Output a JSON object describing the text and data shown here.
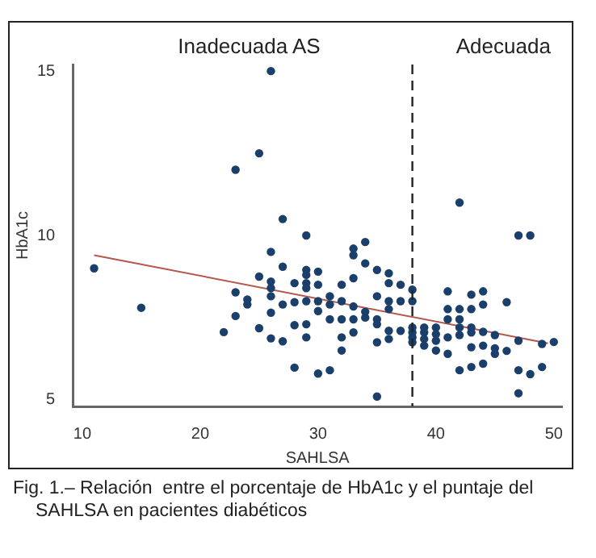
{
  "chart_data": {
    "type": "scatter",
    "xlabel": "SAHLSA",
    "ylabel": "HbA1c",
    "xlim": [
      9.2,
      50.7
    ],
    "xticks": [
      10,
      20,
      30,
      40,
      50
    ],
    "ylim": [
      4.8,
      15.2
    ],
    "yticks": [
      5,
      10,
      15
    ],
    "grid": false,
    "legend": false,
    "marker": "circle",
    "series": [
      {
        "color": "#1b3f6b",
        "x": [
          26,
          25,
          23,
          27,
          29,
          42,
          47,
          48,
          11,
          15,
          26,
          27,
          25,
          26,
          26,
          28,
          23,
          24,
          24,
          26,
          27,
          28,
          23,
          26,
          22,
          25,
          28,
          26,
          27,
          28,
          29,
          29,
          29,
          29,
          29,
          29,
          29,
          30,
          30,
          30,
          30,
          30,
          31,
          31,
          31,
          31,
          32,
          32,
          32,
          32,
          32,
          33,
          33,
          33,
          33,
          33,
          33,
          34,
          34,
          34,
          34,
          35,
          35,
          35,
          35,
          35,
          35,
          36,
          36,
          36,
          36,
          36,
          36,
          37,
          37,
          37,
          38,
          38,
          38,
          38,
          38,
          38,
          39,
          39,
          39,
          39,
          40,
          40,
          40,
          40,
          41,
          41,
          41,
          41,
          41,
          42,
          42,
          42,
          42,
          42,
          43,
          43,
          43,
          43,
          43,
          43,
          44,
          44,
          44,
          44,
          44,
          45,
          45,
          45,
          46,
          46,
          47,
          47,
          47,
          48,
          49,
          49,
          50
        ],
        "values": [
          15,
          12.5,
          12,
          10.5,
          10,
          11,
          10,
          10,
          9,
          7.8,
          9.5,
          9.05,
          8.75,
          8.6,
          8.4,
          8.55,
          8.27,
          8.05,
          7.9,
          8.15,
          7.9,
          7.97,
          7.55,
          7.65,
          7.06,
          7.18,
          7.27,
          6.87,
          6.78,
          5.98,
          8.95,
          8.8,
          8.55,
          8.4,
          8,
          7.3,
          6.9,
          8.9,
          8.5,
          8,
          7.7,
          5.8,
          8.15,
          7.9,
          7.45,
          5.9,
          8.5,
          8,
          7.45,
          6.9,
          6.5,
          9.6,
          9.4,
          8.7,
          7.84,
          7.45,
          7.05,
          9.8,
          9.15,
          7.68,
          7.5,
          8.95,
          8.15,
          7.45,
          7.3,
          6.75,
          5.1,
          8.85,
          8.55,
          8,
          7.76,
          7.1,
          6.85,
          8.5,
          8,
          7.1,
          8.35,
          8,
          7.2,
          7.05,
          6.9,
          6.75,
          7.2,
          7.05,
          6.85,
          6.65,
          7.2,
          7,
          6.8,
          6.5,
          8.3,
          7.76,
          7.45,
          6.9,
          6.4,
          7.76,
          7.45,
          7.2,
          6.97,
          5.9,
          8.2,
          7.76,
          7.2,
          7.05,
          6.6,
          6,
          8.3,
          7.9,
          7.07,
          6.65,
          6.1,
          6.97,
          6.57,
          6.4,
          7.97,
          6.49,
          6.8,
          5.9,
          5.2,
          5.78,
          6.7,
          6,
          6.76
        ]
      },
      {
        "type": "line",
        "color": "#b5574e",
        "x": [
          11,
          49.5
        ],
        "values": [
          9.4,
          6.72
        ],
        "marker": "none"
      }
    ],
    "ref_lines": [
      {
        "axis": "x",
        "value": 38,
        "line_style": "dashed",
        "color": "#222222"
      }
    ],
    "annotations": [
      "Inadecuada AS",
      "Adecuada",
      "Fig. 1.– Relación  entre el porcentaje de HbA1c y el puntaje del SAHLSA en pacientes diabéticos"
    ]
  }
}
